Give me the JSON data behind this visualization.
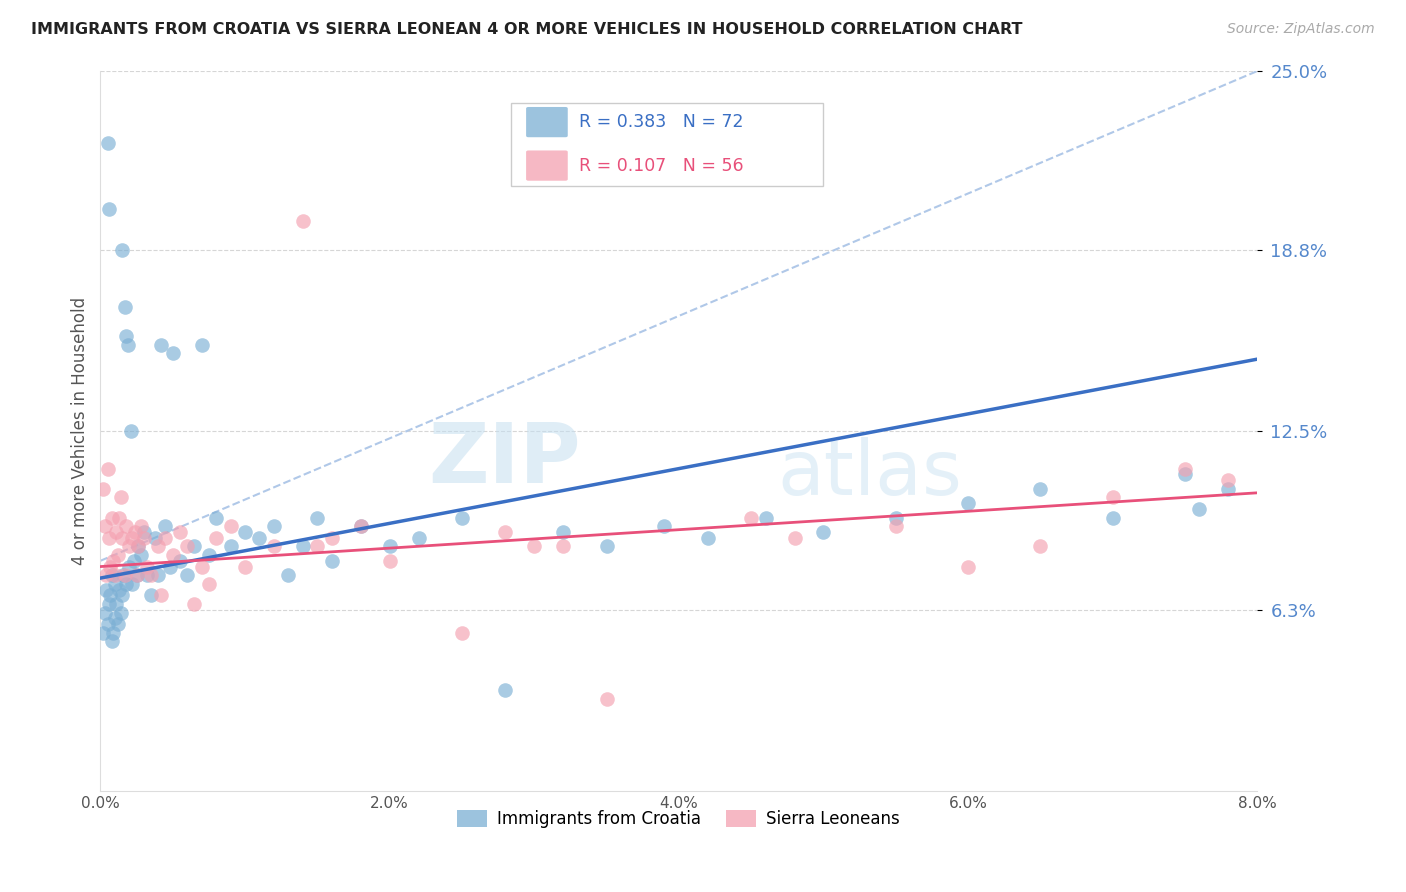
{
  "title": "IMMIGRANTS FROM CROATIA VS SIERRA LEONEAN 4 OR MORE VEHICLES IN HOUSEHOLD CORRELATION CHART",
  "source": "Source: ZipAtlas.com",
  "ylabel": "4 or more Vehicles in Household",
  "xmin": 0.0,
  "xmax": 8.0,
  "ymin": 0.0,
  "ymax": 25.0,
  "yticks": [
    6.3,
    12.5,
    18.8,
    25.0
  ],
  "ytick_labels": [
    "6.3%",
    "12.5%",
    "18.8%",
    "25.0%"
  ],
  "xticks": [
    0,
    2,
    4,
    6,
    8
  ],
  "xtick_labels": [
    "0.0%",
    "2.0%",
    "4.0%",
    "6.0%",
    "8.0%"
  ],
  "grid_color": "#cccccc",
  "background_color": "#ffffff",
  "croatia_color": "#7bafd4",
  "sierra_color": "#f4a0b0",
  "croatia_line_color": "#3a6fc4",
  "sierra_line_color": "#e8507a",
  "dashed_line_color": "#b0c8e8",
  "watermark": "ZIPatlas",
  "watermark_color": "#d0e4f0",
  "croatia_R": 0.383,
  "croatia_N": 72,
  "sierra_R": 0.107,
  "sierra_N": 56,
  "legend_croatia_color": "#7bafd4",
  "legend_sierra_color": "#f4a0b0",
  "legend_croatia_text_color": "#3a6fc4",
  "legend_sierra_text_color": "#e8507a",
  "bottom_legend_croatia": "Immigrants from Croatia",
  "bottom_legend_sierra": "Sierra Leoneans",
  "tick_color_right": "#5588cc",
  "croatia_scatter_x": [
    0.02,
    0.03,
    0.04,
    0.05,
    0.05,
    0.06,
    0.06,
    0.07,
    0.08,
    0.08,
    0.09,
    0.1,
    0.1,
    0.11,
    0.12,
    0.13,
    0.14,
    0.15,
    0.15,
    0.16,
    0.17,
    0.18,
    0.18,
    0.19,
    0.2,
    0.21,
    0.22,
    0.23,
    0.25,
    0.26,
    0.28,
    0.3,
    0.32,
    0.35,
    0.38,
    0.4,
    0.42,
    0.45,
    0.48,
    0.5,
    0.55,
    0.6,
    0.65,
    0.7,
    0.75,
    0.8,
    0.9,
    1.0,
    1.1,
    1.2,
    1.3,
    1.4,
    1.5,
    1.6,
    1.8,
    2.0,
    2.2,
    2.5,
    2.8,
    3.2,
    3.5,
    3.9,
    4.2,
    4.6,
    5.0,
    5.5,
    6.0,
    6.5,
    7.0,
    7.5,
    7.6,
    7.8
  ],
  "croatia_scatter_y": [
    5.5,
    6.2,
    7.0,
    5.8,
    22.5,
    6.5,
    20.2,
    6.8,
    5.2,
    7.5,
    5.5,
    6.0,
    7.2,
    6.5,
    5.8,
    7.0,
    6.2,
    6.8,
    18.8,
    7.5,
    16.8,
    15.8,
    7.2,
    15.5,
    7.8,
    12.5,
    7.2,
    8.0,
    7.5,
    8.5,
    8.2,
    9.0,
    7.5,
    6.8,
    8.8,
    7.5,
    15.5,
    9.2,
    7.8,
    15.2,
    8.0,
    7.5,
    8.5,
    15.5,
    8.2,
    9.5,
    8.5,
    9.0,
    8.8,
    9.2,
    7.5,
    8.5,
    9.5,
    8.0,
    9.2,
    8.5,
    8.8,
    9.5,
    3.5,
    9.0,
    8.5,
    9.2,
    8.8,
    9.5,
    9.0,
    9.5,
    10.0,
    10.5,
    9.5,
    11.0,
    9.8,
    10.5
  ],
  "sierra_scatter_x": [
    0.02,
    0.03,
    0.04,
    0.05,
    0.06,
    0.07,
    0.08,
    0.09,
    0.1,
    0.11,
    0.12,
    0.13,
    0.14,
    0.15,
    0.17,
    0.18,
    0.2,
    0.22,
    0.24,
    0.26,
    0.28,
    0.3,
    0.35,
    0.4,
    0.45,
    0.5,
    0.55,
    0.6,
    0.7,
    0.8,
    0.9,
    1.0,
    1.2,
    1.4,
    1.6,
    1.8,
    2.0,
    2.5,
    3.0,
    3.5,
    4.5,
    4.8,
    5.5,
    6.0,
    6.5,
    7.0,
    7.5,
    7.8,
    2.8,
    3.2,
    0.25,
    0.32,
    0.42,
    0.65,
    0.75,
    1.5
  ],
  "sierra_scatter_y": [
    10.5,
    9.2,
    7.5,
    11.2,
    8.8,
    7.8,
    9.5,
    8.0,
    7.5,
    9.0,
    8.2,
    9.5,
    10.2,
    8.8,
    7.5,
    9.2,
    8.5,
    8.8,
    9.0,
    8.5,
    9.2,
    8.8,
    7.5,
    8.5,
    8.8,
    8.2,
    9.0,
    8.5,
    7.8,
    8.8,
    9.2,
    7.8,
    8.5,
    19.8,
    8.8,
    9.2,
    8.0,
    5.5,
    8.5,
    3.2,
    9.5,
    8.8,
    9.2,
    7.8,
    8.5,
    10.2,
    11.2,
    10.8,
    9.0,
    8.5,
    7.5,
    7.8,
    6.8,
    6.5,
    7.2,
    8.5
  ]
}
